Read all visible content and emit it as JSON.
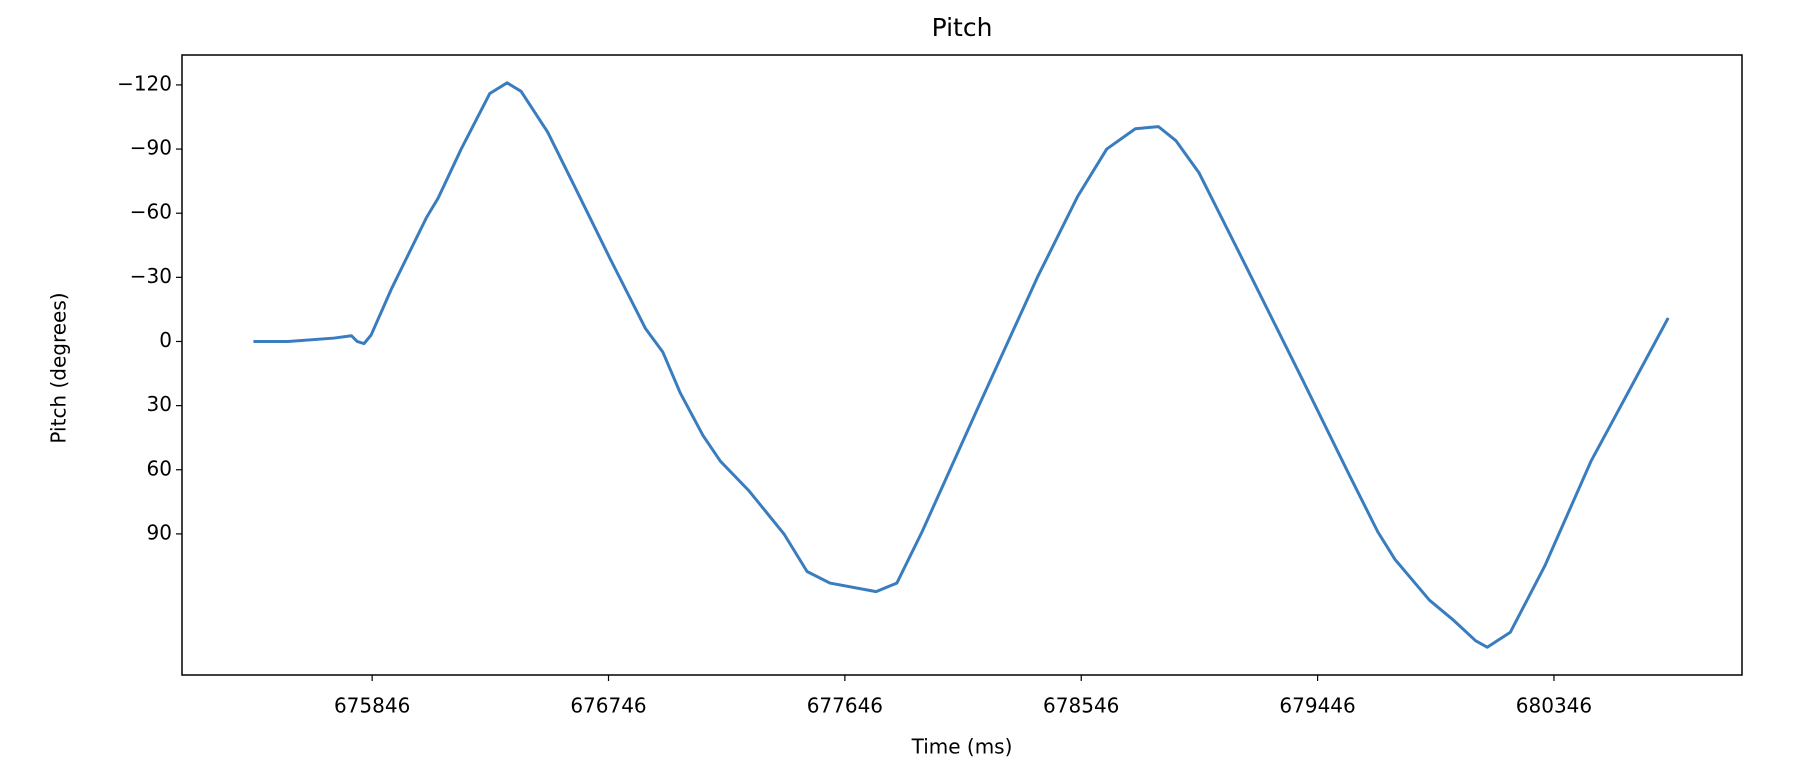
{
  "chart_data": {
    "type": "line",
    "title": "Pitch",
    "x_label": "Time (ms)",
    "y_label": "Pitch (degrees)",
    "x": [
      675394,
      675526,
      675702,
      675767,
      675789,
      675815,
      675842,
      675921,
      676053,
      676097,
      676185,
      676294,
      676360,
      676413,
      676514,
      676623,
      676755,
      676887,
      676953,
      677019,
      677106,
      677172,
      677282,
      677414,
      677502,
      677589,
      677765,
      677844,
      677940,
      678160,
      678379,
      678533,
      678643,
      678752,
      678840,
      678906,
      678994,
      679170,
      679389,
      679565,
      679675,
      679741,
      679872,
      679960,
      680048,
      680092,
      680180,
      680311,
      680487,
      680575,
      680781
    ],
    "series": [
      {
        "name": "Pitch",
        "color": "#3a7dbf",
        "values": [
          0,
          0,
          -1.6,
          -2.7,
          0,
          1,
          -3,
          -25,
          -58,
          -67,
          -90,
          -116,
          -121,
          -117,
          -98,
          -71,
          -38,
          -6,
          5,
          24,
          44,
          56,
          70,
          90,
          107.6,
          113,
          117,
          113,
          89,
          29,
          -30,
          -68,
          -90,
          -99.5,
          -100.5,
          -94,
          -79,
          -36,
          18,
          62,
          89,
          102,
          121,
          130,
          140,
          143,
          136,
          105,
          56,
          36,
          -11
        ]
      }
    ],
    "xlim": [
      675122,
      681062
    ],
    "xticks": [
      675846,
      676746,
      677646,
      678546,
      679446,
      680346
    ],
    "ylim": [
      -134,
      156
    ],
    "y_inverted": true,
    "yticks": [
      {
        "value": -120,
        "label": "−120"
      },
      {
        "value": -90,
        "label": "−90"
      },
      {
        "value": -60,
        "label": "−60"
      },
      {
        "value": -30,
        "label": "−30"
      },
      0,
      30,
      60,
      90
    ]
  }
}
